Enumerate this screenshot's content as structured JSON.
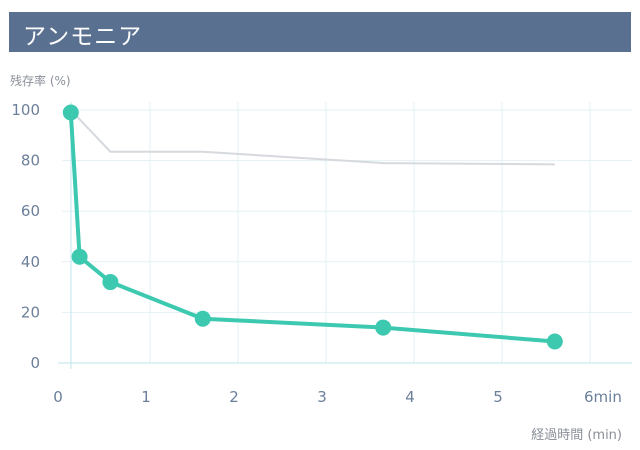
{
  "header": {
    "title": "アンモニア"
  },
  "colors": {
    "header_bg": "#5a7090",
    "accent": "#3cc9b0",
    "reference": "#d6d9dd",
    "grid": "#e3f1f4"
  },
  "chart_data": {
    "type": "line",
    "title": "アンモニア",
    "ylabel": "残存率 (%)",
    "xlabel": "経過時間 (min)",
    "xlim": [
      0,
      6.2
    ],
    "ylim": [
      0,
      100
    ],
    "x_ticks": [
      {
        "value": 0,
        "label": "0"
      },
      {
        "value": 1,
        "label": "1"
      },
      {
        "value": 2,
        "label": "2"
      },
      {
        "value": 3,
        "label": "3"
      },
      {
        "value": 4,
        "label": "4"
      },
      {
        "value": 5,
        "label": "5"
      },
      {
        "value": 6,
        "label": "6min"
      }
    ],
    "y_ticks": [
      {
        "value": 0,
        "label": "0"
      },
      {
        "value": 20,
        "label": "20"
      },
      {
        "value": 40,
        "label": "40"
      },
      {
        "value": 60,
        "label": "60"
      },
      {
        "value": 80,
        "label": "80"
      },
      {
        "value": 100,
        "label": "100"
      }
    ],
    "grid": true,
    "series": [
      {
        "markers": false,
        "x": [
          0.1,
          0.55,
          1.6,
          3.65,
          5.6
        ],
        "y": [
          100,
          83.5,
          83.5,
          79,
          78.5
        ]
      },
      {
        "markers": true,
        "x": [
          0.1,
          0.2,
          0.55,
          1.6,
          3.65,
          5.6
        ],
        "y": [
          99,
          42,
          32,
          17.5,
          14,
          8.5
        ]
      }
    ]
  }
}
